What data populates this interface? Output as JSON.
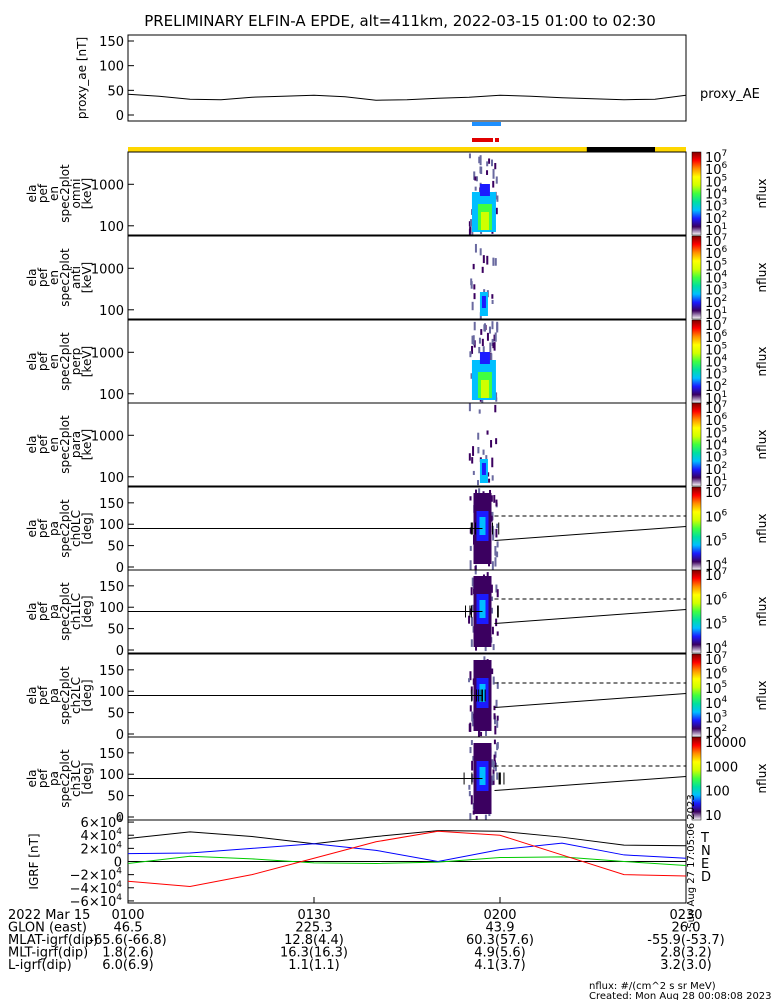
{
  "title": "PRELIMINARY ELFIN-A EPDE, alt=411km, 2022-03-15 01:00 to 02:30",
  "colors": {
    "ae_line": "#000000",
    "science_blue": "#1e90ff",
    "science_red": "#e00000",
    "sun_yellow": "#ffd700",
    "shadow_black": "#000000",
    "grf_T": "#000000",
    "grf_N": "#0000ff",
    "grf_E": "#00cc00",
    "grf_D": "#ff0000"
  },
  "colorbar_stops": [
    "#ffffff",
    "#3b0060",
    "#1b1bff",
    "#00bfff",
    "#00e0a0",
    "#40ff40",
    "#d0ff00",
    "#ffff00",
    "#ff9000",
    "#ff0000",
    "#800000"
  ],
  "ae_panel": {
    "ylabel": "proxy_ae [nT]",
    "ticks": [
      "150",
      "100",
      "50",
      "0"
    ],
    "series_label": "proxy_AE"
  },
  "panels": [
    {
      "ylabel": [
        "ela",
        "pef",
        "en",
        "spec2plot",
        "omni",
        "[keV]"
      ],
      "ticks": [
        "1000",
        "100"
      ],
      "cb_ticks": [
        "10",
        "10",
        "10",
        "10",
        "10",
        "10",
        "10"
      ],
      "cb_exp": [
        "7",
        "6",
        "5",
        "4",
        "3",
        "2",
        "1"
      ],
      "cb_label": "nflux"
    },
    {
      "ylabel": [
        "ela",
        "pef",
        "en",
        "spec2plot",
        "anti",
        "[keV]"
      ],
      "ticks": [
        "1000",
        "100"
      ],
      "cb_ticks": [
        "10",
        "10",
        "10",
        "10",
        "10",
        "10",
        "10"
      ],
      "cb_exp": [
        "7",
        "6",
        "5",
        "4",
        "3",
        "2",
        "1"
      ],
      "cb_label": "nflux"
    },
    {
      "ylabel": [
        "ela",
        "pef",
        "en",
        "spec2plot",
        "perp",
        "[keV]"
      ],
      "ticks": [
        "1000",
        "100"
      ],
      "cb_ticks": [
        "10",
        "10",
        "10",
        "10",
        "10",
        "10",
        "10"
      ],
      "cb_exp": [
        "7",
        "6",
        "5",
        "4",
        "3",
        "2",
        "1"
      ],
      "cb_label": "nflux"
    },
    {
      "ylabel": [
        "ela",
        "pef",
        "en",
        "spec2plot",
        "para",
        "[keV]"
      ],
      "ticks": [
        "1000",
        "100"
      ],
      "cb_ticks": [
        "10",
        "10",
        "10",
        "10",
        "10",
        "10",
        "10"
      ],
      "cb_exp": [
        "7",
        "6",
        "5",
        "4",
        "3",
        "2",
        "1"
      ],
      "cb_label": "nflux"
    },
    {
      "ylabel": [
        "ela",
        "pef",
        "pa",
        "spec2plot",
        "ch0LC",
        "[deg]"
      ],
      "ticks": [
        "150",
        "100",
        "50",
        "0"
      ],
      "cb_ticks": [
        "10",
        "10",
        "10",
        "10"
      ],
      "cb_exp": [
        "7",
        "6",
        "5",
        "4"
      ],
      "cb_label": "nflux"
    },
    {
      "ylabel": [
        "ela",
        "pef",
        "pa",
        "spec2plot",
        "ch1LC",
        "[deg]"
      ],
      "ticks": [
        "150",
        "100",
        "50",
        "0"
      ],
      "cb_ticks": [
        "10",
        "10",
        "10",
        "10"
      ],
      "cb_exp": [
        "7",
        "6",
        "5",
        "4"
      ],
      "cb_label": "nflux"
    },
    {
      "ylabel": [
        "ela",
        "pef",
        "pa",
        "spec2plot",
        "ch2LC",
        "[deg]"
      ],
      "ticks": [
        "150",
        "100",
        "50",
        "0"
      ],
      "cb_ticks": [
        "10",
        "10",
        "10",
        "10",
        "10",
        "10"
      ],
      "cb_exp": [
        "7",
        "6",
        "5",
        "4",
        "3",
        "2"
      ],
      "cb_label": "nflux"
    },
    {
      "ylabel": [
        "ela",
        "pef",
        "pa",
        "spec2plot",
        "ch3LC",
        "[deg]"
      ],
      "ticks": [
        "150",
        "100",
        "50",
        "0"
      ],
      "cb_ticks": [
        "10000",
        "1000",
        "100",
        "10"
      ],
      "cb_exp": [
        "",
        "",
        "",
        ""
      ],
      "cb_label": "nflux"
    }
  ],
  "grf_panel": {
    "ylabel": "IGRF [nT]",
    "ticks": [
      {
        "m": "6×10",
        "e": "4"
      },
      {
        "m": "4×10",
        "e": "4"
      },
      {
        "m": "2×10",
        "e": "4"
      },
      {
        "m": "0",
        "e": ""
      },
      {
        "m": "−2×10",
        "e": "4"
      },
      {
        "m": "−4×10",
        "e": "4"
      },
      {
        "m": "−6×10",
        "e": "4"
      }
    ],
    "legend": [
      "T",
      "N",
      "E",
      "D"
    ],
    "side_text": "Sun Aug 27 17:05:06 2023"
  },
  "time_axis": {
    "row_label": "2022 Mar 15",
    "ticks": [
      "0100",
      "0130",
      "0200",
      "0230"
    ]
  },
  "ephemeris": [
    {
      "label": "GLON (east)",
      "values": [
        "46.5",
        "225.3",
        "43.9",
        "26.0"
      ]
    },
    {
      "label": "MLAT-igrf(dip)",
      "values": [
        "-65.6(-66.8)",
        "12.8(4.4)",
        "60.3(57.6)",
        "-55.9(-53.7)"
      ]
    },
    {
      "label": "MLT-igrf(dip)",
      "values": [
        "1.8(2.6)",
        "16.3(16.3)",
        "4.9(5.6)",
        "2.8(3.2)"
      ]
    },
    {
      "label": "L-igrf(dip)",
      "values": [
        "6.0(6.9)",
        "1.1(1.1)",
        "4.1(3.7)",
        "3.2(3.0)"
      ]
    }
  ],
  "footer": {
    "units": "nflux: #/(cm^2 s sr MeV)",
    "created": "Created: Mon Aug 28 00:08:08 2023"
  },
  "chart_data": {
    "type": "heatmap",
    "x_range": [
      "01:00",
      "02:30"
    ],
    "proxy_ae": {
      "name": "proxy_AE",
      "ylim": [
        0,
        150
      ],
      "x": [
        "01:00",
        "01:05",
        "01:10",
        "01:15",
        "01:20",
        "01:25",
        "01:30",
        "01:35",
        "01:40",
        "01:45",
        "01:50",
        "01:55",
        "02:00",
        "02:05",
        "02:10",
        "02:15",
        "02:20",
        "02:25",
        "02:30"
      ],
      "y": [
        42,
        38,
        32,
        31,
        36,
        38,
        40,
        37,
        30,
        31,
        34,
        36,
        40,
        38,
        35,
        33,
        31,
        32,
        40
      ]
    },
    "activity_window": [
      "01:55",
      "02:00"
    ],
    "energy_ylim_keV": [
      60,
      6000
    ],
    "pa_ylim_deg": [
      0,
      180
    ],
    "igrf": {
      "ylim": [
        -60000,
        60000
      ],
      "x": [
        "01:00",
        "01:10",
        "01:20",
        "01:30",
        "01:40",
        "01:50",
        "02:00",
        "02:10",
        "02:20",
        "02:30"
      ],
      "series": [
        {
          "name": "T",
          "values": [
            35000,
            45000,
            38000,
            27000,
            38000,
            47000,
            46000,
            37000,
            25000,
            24000
          ]
        },
        {
          "name": "N",
          "values": [
            12000,
            13000,
            20000,
            27000,
            17000,
            0,
            18000,
            28000,
            10000,
            5000
          ]
        },
        {
          "name": "E",
          "values": [
            -3000,
            8000,
            4000,
            -2000,
            -3000,
            -1000,
            6000,
            7000,
            0,
            -6000
          ]
        },
        {
          "name": "D",
          "values": [
            -30000,
            -38000,
            -20000,
            5000,
            30000,
            46000,
            40000,
            10000,
            -20000,
            -22000
          ]
        }
      ]
    }
  }
}
